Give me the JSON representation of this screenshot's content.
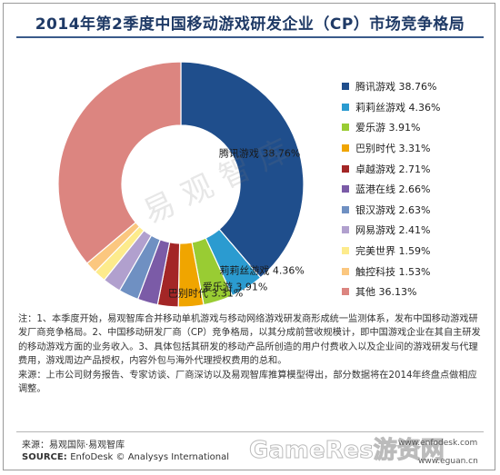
{
  "title": "2014年第2季度中国移动游戏研发企业（CP）市场竞争格局",
  "watermark": "易观智库",
  "chart_data": {
    "type": "pie",
    "donut": true,
    "title": "2014年第2季度中国移动游戏研发企业（CP）市场竞争格局",
    "legend_position": "right",
    "slices": [
      {
        "label": "腾讯游戏",
        "value": 38.76,
        "display": "38.76%",
        "color": "#1f4e8c"
      },
      {
        "label": "莉莉丝游戏",
        "value": 4.36,
        "display": "4.36%",
        "color": "#2b9bd0"
      },
      {
        "label": "爱乐游",
        "value": 3.91,
        "display": "3.91%",
        "color": "#99cc33"
      },
      {
        "label": "巴别时代",
        "value": 3.31,
        "display": "3.31%",
        "color": "#f0a500"
      },
      {
        "label": "卓越游戏",
        "value": 2.71,
        "display": "2.71%",
        "color": "#a32626"
      },
      {
        "label": "蓝港在线",
        "value": 2.66,
        "display": "2.66%",
        "color": "#7b5ba7"
      },
      {
        "label": "银汉游戏",
        "value": 2.63,
        "display": "2.63%",
        "color": "#6f90c2"
      },
      {
        "label": "网易游戏",
        "value": 2.41,
        "display": "2.41%",
        "color": "#b1a0ce"
      },
      {
        "label": "完美世界",
        "value": 1.59,
        "display": "1.59%",
        "color": "#fdeb8c"
      },
      {
        "label": "触控科技",
        "value": 1.53,
        "display": "1.53%",
        "color": "#fbc77f"
      },
      {
        "label": "其他",
        "value": 36.13,
        "display": "36.13%",
        "color": "#dc8580"
      }
    ],
    "slice_labels": [
      {
        "text": "腾讯游戏 38.76%",
        "slice": 0
      },
      {
        "text": "莉莉丝游戏 4.36%",
        "slice": 1
      },
      {
        "text": "爱乐游 3.91%",
        "slice": 2
      },
      {
        "text": "巴别时代 3.31%",
        "slice": 3
      }
    ]
  },
  "notes": [
    "注：1、本季度开始，易观智库合并移动单机游戏与移动网络游戏研发商形成统一监测体系，发布中国移动游戏研发厂商竞争格局。2、中国移动研发厂商（CP）竞争格局，以其分成前营收规模计，即中国游戏企业在其自主研发的移动游戏方面的业务收入。3、具体包括其研发的移动产品所创造的用户付费收入以及企业间的游戏研发与代理费用，游戏周边产品授权，内容外包与海外代理授权费用的总和。",
    "来源：上市公司财务报告、专家访谈、厂商深访以及易观智库推算模型得出，部分数据将在2014年终盘点做相应调整。"
  ],
  "source_cn": "来源：易观国际·易观智库",
  "source_en_label": "SOURCE:",
  "source_en_text": "EnfoDesk © Analysys International",
  "brand": {
    "url1": "www.enfodesk.com",
    "url2": "www.eguan.cn",
    "overlay": "GameRes游资网"
  }
}
